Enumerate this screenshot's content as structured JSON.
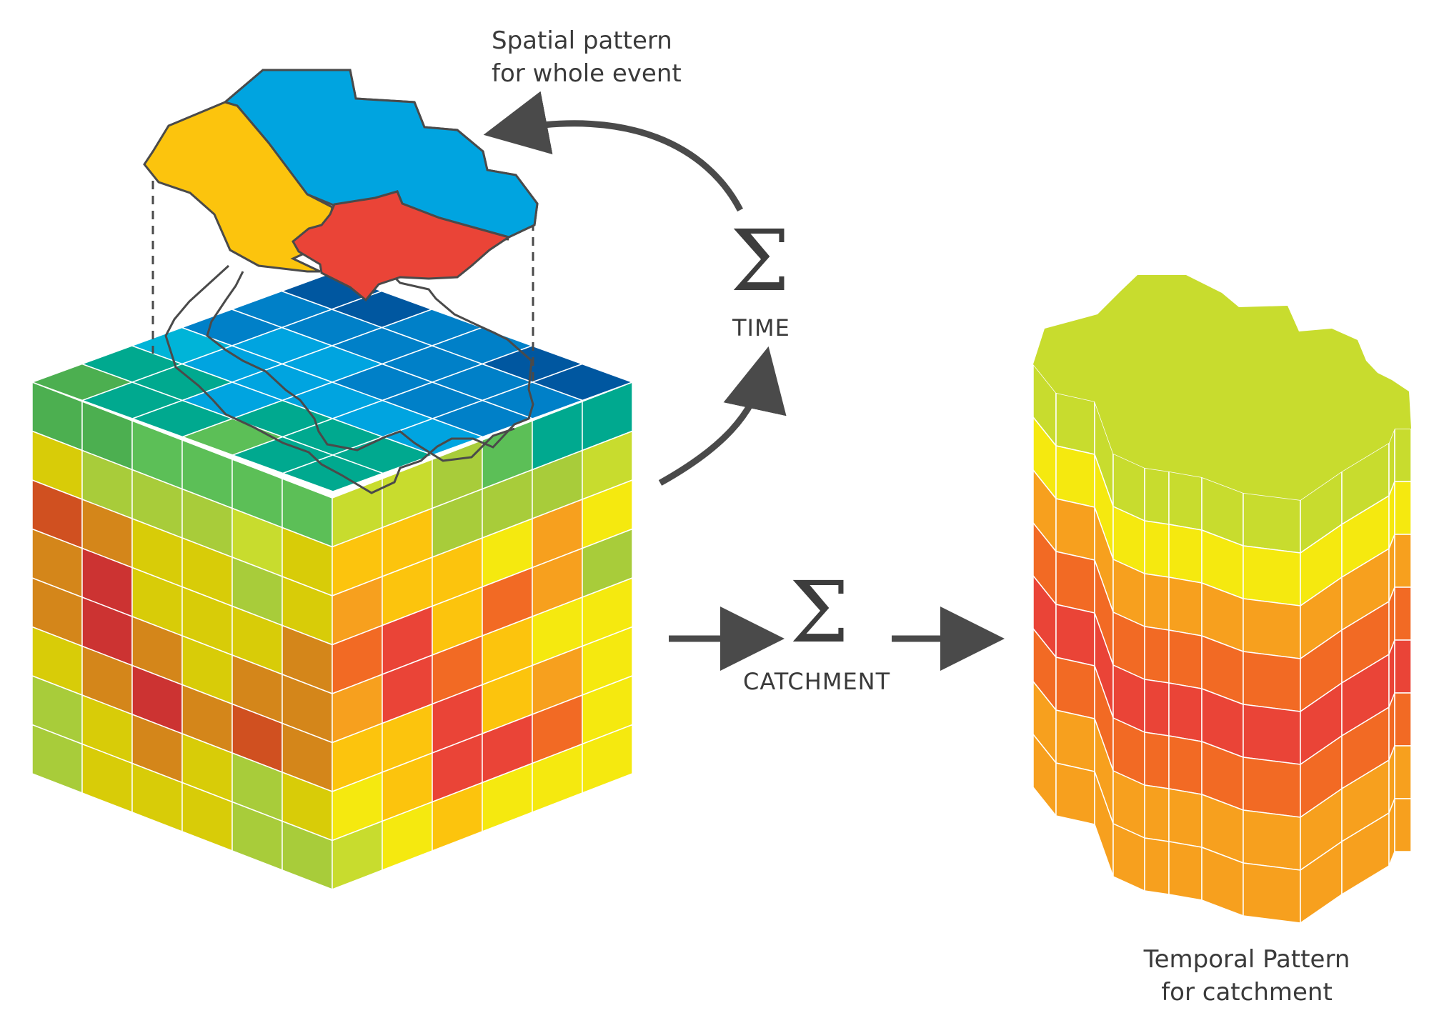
{
  "labels": {
    "spatial_line1": "Spatial pattern",
    "spatial_line2": "for whole event",
    "temporal_line1": "Temporal Pattern",
    "temporal_line2": "for catchment",
    "time_sigma": "Σ",
    "time_caption": "TIME",
    "catchment_sigma": "Σ",
    "catchment_caption": "CATCHMENT"
  },
  "colors": {
    "blue_dark": "#0057a0",
    "blue": "#0080c8",
    "blue_light": "#00a4e0",
    "cyan": "#00b4d8",
    "teal": "#00a98f",
    "green": "#4caf50",
    "green_light": "#5cbf57",
    "lime": "#a8cc3a",
    "yellow_green": "#c8dc2e",
    "yellow": "#f5e90f",
    "mustard": "#d8cc08",
    "gold": "#fcc40d",
    "orange": "#f7a01e",
    "orange_dark": "#d4861a",
    "red_orange": "#f26a24",
    "red": "#ea4437",
    "brick": "#d05020",
    "crimson": "#cc3332",
    "catchment_yellow": "#fcc40d",
    "catchment_blue": "#00a4e0",
    "catchment_red": "#ea4437",
    "cylinder_top": "#c8dc2e",
    "arrow": "#4a4a4a",
    "outline": "#4a4a4a"
  },
  "cube": {
    "top_grid": [
      [
        "blue_dark",
        "blue_dark",
        "blue",
        "blue",
        "blue_dark",
        "blue_dark"
      ],
      [
        "blue",
        "blue",
        "blue",
        "blue",
        "blue",
        "blue"
      ],
      [
        "blue",
        "blue_light",
        "blue_light",
        "blue",
        "blue",
        "blue"
      ],
      [
        "cyan",
        "blue_light",
        "blue_light",
        "blue_light",
        "blue_light",
        "blue_light"
      ],
      [
        "teal",
        "teal",
        "blue_light",
        "teal",
        "teal",
        "teal"
      ],
      [
        "green",
        "teal",
        "teal",
        "green_light",
        "teal",
        "teal"
      ]
    ],
    "left_face": [
      [
        "green",
        "green",
        "green_light",
        "green_light",
        "green_light",
        "green_light"
      ],
      [
        "mustard",
        "lime",
        "lime",
        "lime",
        "yellow_green",
        "mustard"
      ],
      [
        "brick",
        "orange_dark",
        "mustard",
        "mustard",
        "lime",
        "mustard"
      ],
      [
        "orange_dark",
        "crimson",
        "mustard",
        "mustard",
        "mustard",
        "orange_dark"
      ],
      [
        "orange_dark",
        "crimson",
        "orange_dark",
        "mustard",
        "orange_dark",
        "orange_dark"
      ],
      [
        "mustard",
        "orange_dark",
        "crimson",
        "orange_dark",
        "brick",
        "orange_dark"
      ],
      [
        "lime",
        "mustard",
        "orange_dark",
        "mustard",
        "lime",
        "mustard"
      ],
      [
        "lime",
        "mustard",
        "mustard",
        "mustard",
        "lime",
        "lime"
      ]
    ],
    "right_face": [
      [
        "yellow_green",
        "yellow_green",
        "lime",
        "green_light",
        "teal",
        "teal"
      ],
      [
        "gold",
        "gold",
        "lime",
        "lime",
        "lime",
        "yellow_green"
      ],
      [
        "orange",
        "gold",
        "gold",
        "yellow",
        "orange",
        "yellow"
      ],
      [
        "red_orange",
        "red",
        "gold",
        "red_orange",
        "orange",
        "lime"
      ],
      [
        "orange",
        "red",
        "red_orange",
        "gold",
        "yellow",
        "yellow"
      ],
      [
        "gold",
        "gold",
        "red",
        "gold",
        "orange",
        "yellow"
      ],
      [
        "yellow",
        "gold",
        "red",
        "red",
        "red_orange",
        "yellow"
      ],
      [
        "yellow_green",
        "yellow",
        "gold",
        "yellow",
        "yellow",
        "yellow"
      ]
    ]
  },
  "cylinder": {
    "bands": [
      "yellow_green",
      "yellow",
      "orange",
      "red_orange",
      "red",
      "red_orange",
      "orange",
      "orange"
    ]
  }
}
